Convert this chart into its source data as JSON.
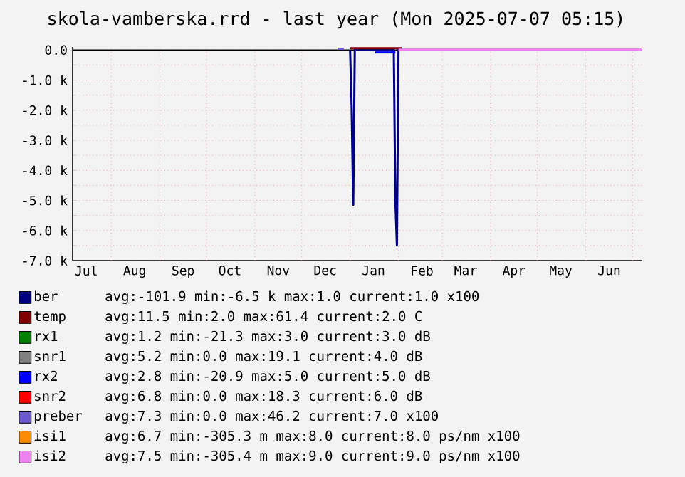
{
  "chart_data": {
    "type": "line",
    "title": "skola-vamberska.rrd - last year (Mon 2025-07-07 05:15)",
    "xlim": [
      "2024-07-07T05:15",
      "2025-07-07T05:15"
    ],
    "xticks": [
      {
        "value": "2024-07-16",
        "label": "Jul"
      },
      {
        "value": "2024-08-16",
        "label": "Aug"
      },
      {
        "value": "2024-09-16",
        "label": "Sep"
      },
      {
        "value": "2024-10-16",
        "label": "Oct"
      },
      {
        "value": "2024-11-16",
        "label": "Nov"
      },
      {
        "value": "2024-12-16",
        "label": "Dec"
      },
      {
        "value": "2025-01-16",
        "label": "Jan"
      },
      {
        "value": "2025-02-16",
        "label": "Feb"
      },
      {
        "value": "2025-03-16",
        "label": "Mar"
      },
      {
        "value": "2025-04-16",
        "label": "Apr"
      },
      {
        "value": "2025-05-16",
        "label": "May"
      },
      {
        "value": "2025-06-16",
        "label": "Jun"
      },
      {
        "value": "2024-08-01",
        "label": null
      },
      {
        "value": "2024-09-01",
        "label": null
      },
      {
        "value": "2024-10-01",
        "label": null
      },
      {
        "value": "2024-11-01",
        "label": null
      },
      {
        "value": "2024-12-01",
        "label": null
      },
      {
        "value": "2025-01-01",
        "label": null
      },
      {
        "value": "2025-02-01",
        "label": null
      },
      {
        "value": "2025-03-01",
        "label": null
      },
      {
        "value": "2025-04-01",
        "label": null
      },
      {
        "value": "2025-05-01",
        "label": null
      },
      {
        "value": "2025-06-01",
        "label": null
      },
      {
        "value": "2025-07-01",
        "label": null
      }
    ],
    "ylim": [
      -7000,
      100
    ],
    "yticks": [
      {
        "value": 0,
        "label": "0.0"
      },
      {
        "value": -1000,
        "label": "-1.0 k"
      },
      {
        "value": -2000,
        "label": "-2.0 k"
      },
      {
        "value": -3000,
        "label": "-3.0 k"
      },
      {
        "value": -4000,
        "label": "-4.0 k"
      },
      {
        "value": -5000,
        "label": "-5.0 k"
      },
      {
        "value": -6000,
        "label": "-6.0 k"
      },
      {
        "value": -7000,
        "label": "-7.0 k"
      },
      {
        "value": -500,
        "label": null
      },
      {
        "value": -1500,
        "label": null
      },
      {
        "value": -2500,
        "label": null
      },
      {
        "value": -3500,
        "label": null
      },
      {
        "value": -4500,
        "label": null
      },
      {
        "value": -5500,
        "label": null
      },
      {
        "value": -6500,
        "label": null
      }
    ],
    "grid": true,
    "legend": "bottom",
    "ref_lines": [
      {
        "axis": "y",
        "value": 0,
        "color": "#000000"
      }
    ],
    "annotations": [
      "avg:-101.9  min:-6.5 k  max:1.0  current:1.0   x100",
      "avg:11.5  min:2.0  max:61.4  current:2.0   C",
      "avg:1.2  min:-21.3  max:3.0  current:3.0   dB",
      "avg:5.2  min:0.0  max:19.1  current:4.0   dB",
      "avg:2.8  min:-20.9  max:5.0  current:5.0   dB",
      "avg:6.8  min:0.0  max:18.3  current:6.0   dB",
      "avg:7.3  min:0.0  max:46.2  current:7.0   x100",
      "avg:6.7 min:-305.3 m max:8.0 current:8.0   ps/nm x100",
      "avg:7.5 min:-305.4 m max:9.0 current:9.0   ps/nm x100"
    ],
    "series": [
      {
        "name": "ber",
        "color": "#000080",
        "x": [
          "2025-01-01",
          "2025-01-02",
          "2025-01-03",
          "2025-01-04",
          "2025-01-29",
          "2025-01-30",
          "2025-01-31",
          "2025-02-01",
          "2025-07-07"
        ],
        "values": [
          0,
          -1900,
          -5150,
          0,
          0,
          -5000,
          -6500,
          0,
          0
        ]
      },
      {
        "name": "temp",
        "color": "#800000",
        "x": [
          "2025-01-01",
          "2025-02-03"
        ],
        "values": [
          60,
          60
        ]
      },
      {
        "name": "rx1",
        "color": "#008000"
      },
      {
        "name": "snr1",
        "color": "#808080"
      },
      {
        "name": "rx2",
        "color": "#0000ff",
        "x": [
          "2025-01-17",
          "2025-01-30"
        ],
        "values": [
          -80,
          -80
        ]
      },
      {
        "name": "snr2",
        "color": "#ff0000"
      },
      {
        "name": "preber",
        "color": "#6a5acd",
        "x": [
          "2024-12-24",
          "2024-12-28"
        ],
        "values": [
          40,
          40
        ]
      },
      {
        "name": "isi1",
        "color": "#ff8c00"
      },
      {
        "name": "isi2",
        "color": "#ee82ee",
        "x": [
          "2025-02-01",
          "2025-07-07"
        ],
        "values": [
          9,
          9
        ]
      }
    ]
  }
}
